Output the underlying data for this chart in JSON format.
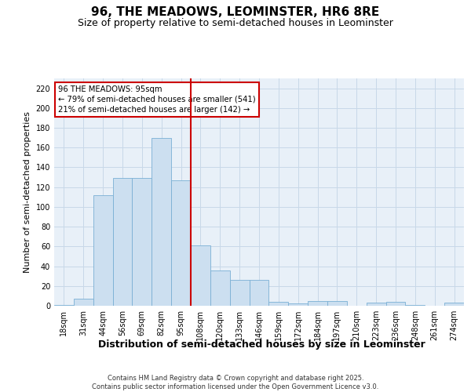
{
  "title": "96, THE MEADOWS, LEOMINSTER, HR6 8RE",
  "subtitle": "Size of property relative to semi-detached houses in Leominster",
  "xlabel": "Distribution of semi-detached houses by size in Leominster",
  "ylabel": "Number of semi-detached properties",
  "categories": [
    "18sqm",
    "31sqm",
    "44sqm",
    "56sqm",
    "69sqm",
    "82sqm",
    "95sqm",
    "108sqm",
    "120sqm",
    "133sqm",
    "146sqm",
    "159sqm",
    "172sqm",
    "184sqm",
    "197sqm",
    "210sqm",
    "223sqm",
    "236sqm",
    "248sqm",
    "261sqm",
    "274sqm"
  ],
  "bar_values": [
    1,
    7,
    112,
    129,
    129,
    170,
    127,
    61,
    36,
    26,
    26,
    4,
    2,
    5,
    5,
    0,
    3,
    4,
    1,
    0,
    3
  ],
  "bar_color": "#ccdff0",
  "bar_edge_color": "#7aafd4",
  "grid_color": "#c8d8e8",
  "background_color": "#e8f0f8",
  "vline_position": 6.5,
  "vline_color": "#cc0000",
  "annotation_text": "96 THE MEADOWS: 95sqm\n← 79% of semi-detached houses are smaller (541)\n21% of semi-detached houses are larger (142) →",
  "annotation_box_color": "#cc0000",
  "ylim": [
    0,
    230
  ],
  "yticks": [
    0,
    20,
    40,
    60,
    80,
    100,
    120,
    140,
    160,
    180,
    200,
    220
  ],
  "footer_text": "Contains HM Land Registry data © Crown copyright and database right 2025.\nContains public sector information licensed under the Open Government Licence v3.0.",
  "title_fontsize": 11,
  "subtitle_fontsize": 9,
  "tick_fontsize": 7,
  "ylabel_fontsize": 8,
  "xlabel_fontsize": 9,
  "footer_fontsize": 6
}
